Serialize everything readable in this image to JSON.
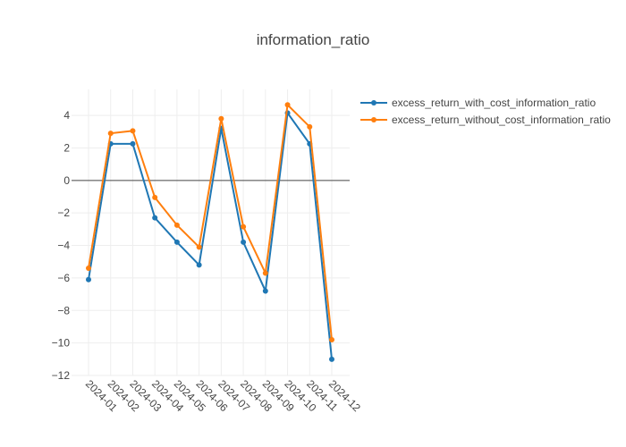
{
  "chart_data": {
    "type": "line",
    "title": "information_ratio",
    "xlabel": "",
    "ylabel": "",
    "categories": [
      "2024-01",
      "2024-02",
      "2024-03",
      "2024-04",
      "2024-05",
      "2024-06",
      "2024-07",
      "2024-08",
      "2024-09",
      "2024-10",
      "2024-11",
      "2024-12"
    ],
    "ylim": [
      -12,
      5.6
    ],
    "yticks": [
      -12,
      -10,
      -8,
      -6,
      -4,
      -2,
      0,
      2,
      4
    ],
    "grid": true,
    "legend_position": "top-right",
    "series": [
      {
        "name": "excess_return_with_cost_information_ratio",
        "color": "#1f77b4",
        "values": [
          -6.1,
          2.25,
          2.25,
          -2.3,
          -3.8,
          -5.2,
          3.2,
          -3.8,
          -6.8,
          4.15,
          2.25,
          -11.0
        ]
      },
      {
        "name": "excess_return_without_cost_information_ratio",
        "color": "#ff7f0e",
        "values": [
          -5.4,
          2.9,
          3.05,
          -1.05,
          -2.75,
          -4.1,
          3.8,
          -2.85,
          -5.7,
          4.65,
          3.3,
          -9.8
        ]
      }
    ]
  }
}
